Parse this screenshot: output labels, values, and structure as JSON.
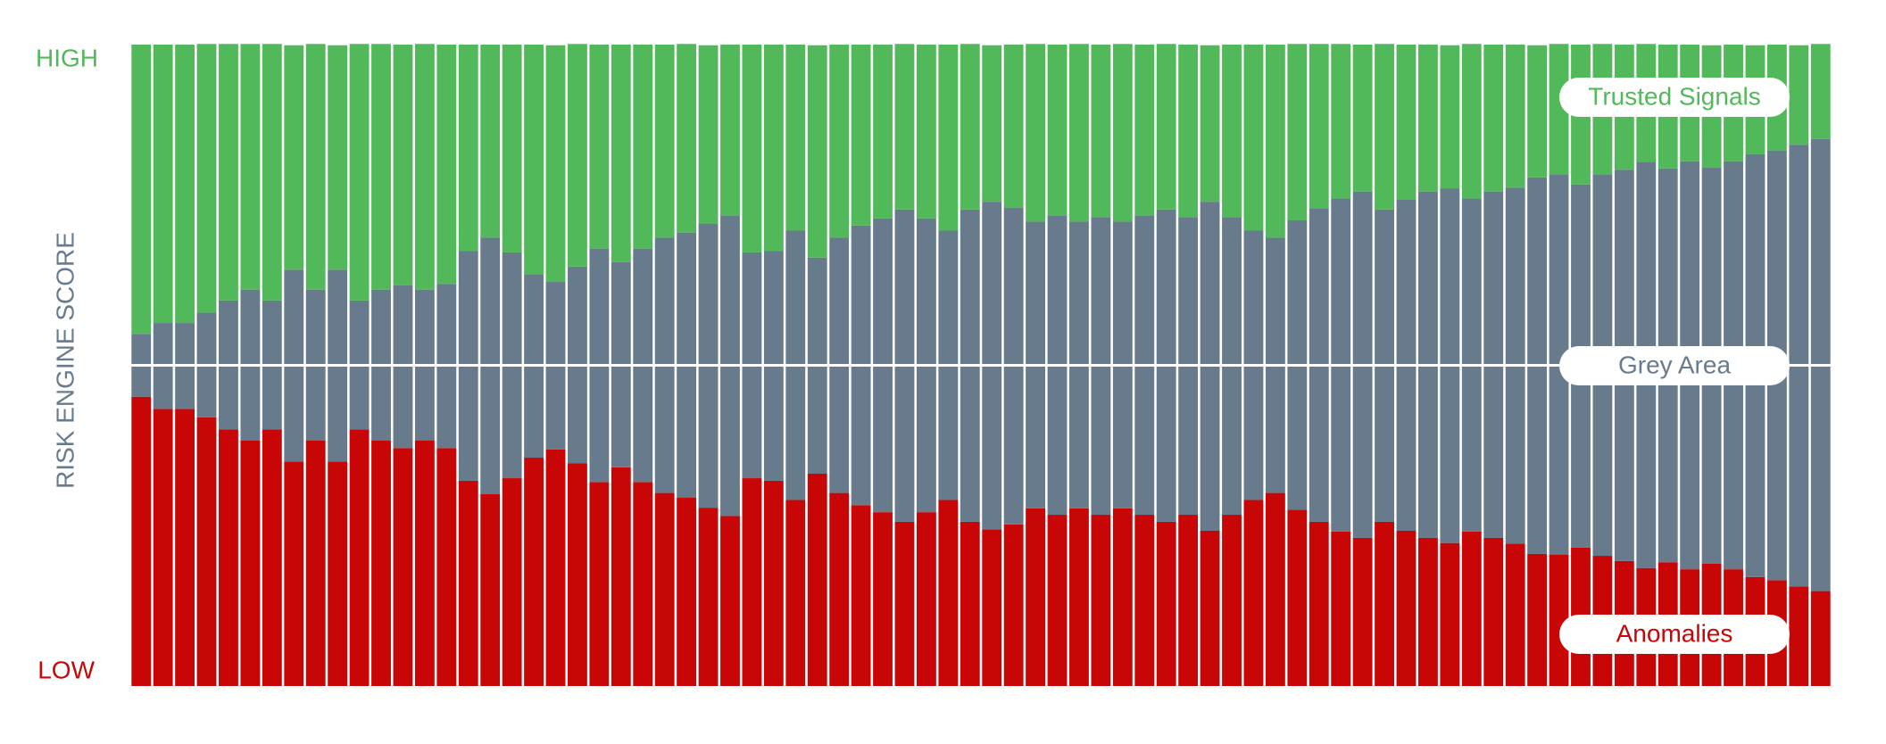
{
  "chart_data": {
    "type": "stacked-bar",
    "y_label": "RISK ENGINE SCORE",
    "y_high_label": "HIGH",
    "y_low_label": "LOW",
    "ylim": [
      0,
      100
    ],
    "series": [
      {
        "name": "Anomalies",
        "color": "#c90606",
        "values": [
          45.1,
          43.2,
          43.2,
          41.9,
          40.0,
          38.3,
          40.0,
          35.0,
          38.3,
          35.0,
          40.0,
          38.3,
          37.1,
          38.3,
          37.1,
          32.0,
          29.9,
          32.4,
          35.6,
          36.9,
          34.7,
          31.8,
          34.1,
          31.8,
          30.1,
          29.4,
          27.8,
          26.5,
          32.4,
          32.0,
          29.0,
          33.1,
          30.1,
          28.2,
          27.1,
          25.6,
          27.1,
          29.0,
          25.6,
          24.4,
          25.2,
          27.7,
          26.7,
          27.7,
          26.7,
          27.7,
          26.7,
          25.6,
          26.7,
          24.2,
          26.7,
          29.0,
          30.1,
          27.5,
          25.6,
          24.1,
          23.1,
          25.6,
          24.2,
          23.1,
          22.3,
          24.1,
          23.1,
          22.2,
          20.6,
          20.5,
          21.6,
          20.3,
          19.5,
          18.4,
          19.3,
          18.2,
          19.1,
          18.2,
          17.0,
          16.5,
          15.5,
          14.8
        ]
      },
      {
        "name": "Grey Area",
        "color": "#687b8c",
        "values": [
          9.8,
          13.4,
          13.4,
          16.3,
          20.1,
          23.5,
          20.1,
          29.9,
          23.5,
          29.9,
          20.1,
          23.5,
          25.4,
          23.5,
          25.6,
          35.8,
          40.0,
          35.2,
          28.6,
          26.1,
          30.7,
          36.4,
          32.0,
          36.4,
          39.8,
          41.3,
          44.3,
          46.8,
          35.2,
          35.8,
          42.0,
          33.7,
          39.8,
          43.6,
          45.8,
          48.7,
          45.8,
          42.0,
          48.7,
          51.1,
          49.4,
          44.7,
          46.6,
          44.7,
          46.4,
          44.7,
          46.6,
          48.7,
          46.4,
          51.3,
          46.4,
          42.0,
          39.8,
          45.1,
          48.9,
          51.9,
          54.0,
          48.7,
          51.7,
          54.0,
          55.3,
          51.9,
          54.0,
          55.5,
          58.7,
          59.3,
          56.6,
          59.5,
          61.0,
          63.3,
          61.4,
          63.6,
          61.7,
          63.6,
          65.9,
          67.0,
          68.9,
          70.5
        ]
      },
      {
        "name": "Trusted Signals",
        "color": "#52b95a",
        "values": [
          45.1,
          43.4,
          43.4,
          41.9,
          40.0,
          38.3,
          40.0,
          35.0,
          38.3,
          35.0,
          40.0,
          38.3,
          37.5,
          38.3,
          37.3,
          32.2,
          30.1,
          32.4,
          35.8,
          36.9,
          34.7,
          31.8,
          33.9,
          31.8,
          30.1,
          29.4,
          27.8,
          26.7,
          32.4,
          32.2,
          29.0,
          33.1,
          30.1,
          28.2,
          27.1,
          25.8,
          27.1,
          29.0,
          25.8,
          24.4,
          25.4,
          27.7,
          26.7,
          27.7,
          26.9,
          27.7,
          26.7,
          25.8,
          26.9,
          24.4,
          26.9,
          29.0,
          30.1,
          27.5,
          25.6,
          24.1,
          22.9,
          25.8,
          24.1,
          22.9,
          22.3,
          24.1,
          22.9,
          22.3,
          20.6,
          20.3,
          21.8,
          20.3,
          19.5,
          18.4,
          19.3,
          18.2,
          19.1,
          18.2,
          17.0,
          16.5,
          15.5,
          14.8
        ]
      }
    ]
  }
}
